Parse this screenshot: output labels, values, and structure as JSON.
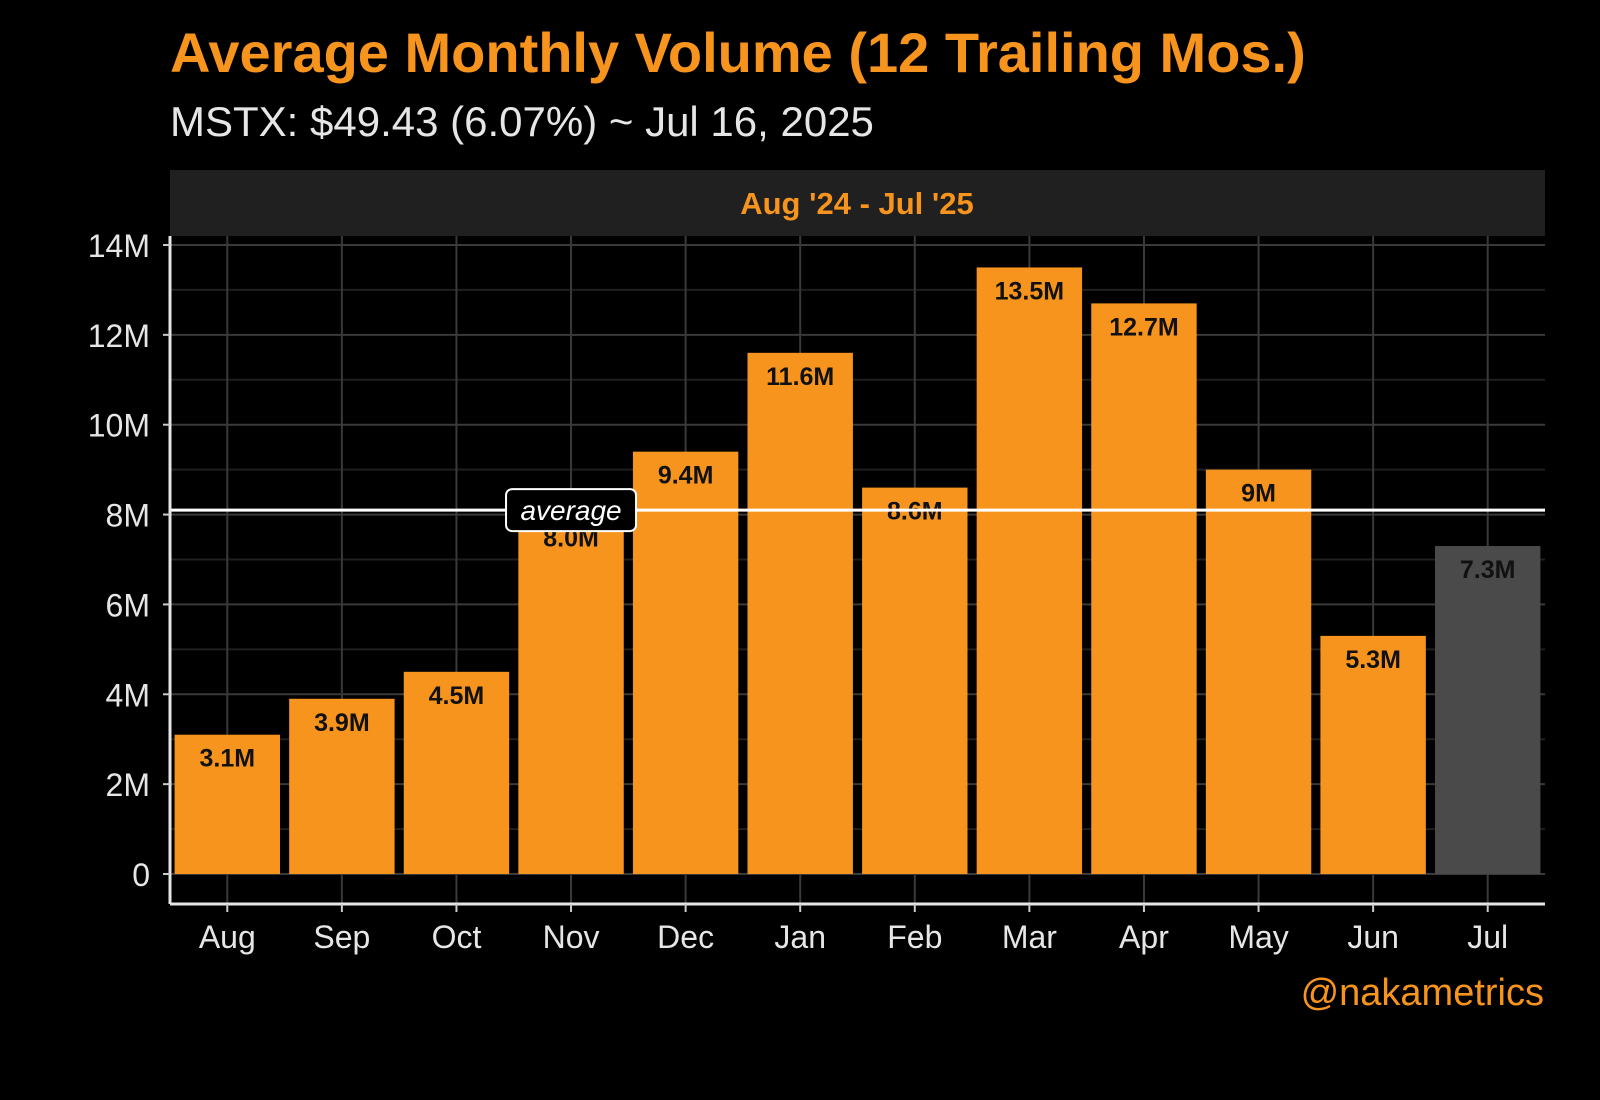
{
  "chart_data": {
    "type": "bar",
    "title": "Average Monthly Volume (12 Trailing Mos.)",
    "subtitle": "MSTX: $49.43 (6.07%) ~ Jul 16, 2025",
    "panel_label": "Aug '24 - Jul '25",
    "credit": "@nakametrics",
    "categories": [
      "Aug",
      "Sep",
      "Oct",
      "Nov",
      "Dec",
      "Jan",
      "Feb",
      "Mar",
      "Apr",
      "May",
      "Jun",
      "Jul"
    ],
    "values": [
      3.1,
      3.9,
      4.5,
      8.0,
      9.4,
      11.6,
      8.6,
      13.5,
      12.7,
      9.0,
      5.3,
      7.3
    ],
    "value_labels": [
      "3.1M",
      "3.9M",
      "4.5M",
      "8.0M",
      "9.4M",
      "11.6M",
      "8.6M",
      "13.5M",
      "12.7M",
      "9M",
      "5.3M",
      "7.3M"
    ],
    "value_unit": "M",
    "yticks": [
      0,
      2,
      4,
      6,
      8,
      10,
      12,
      14
    ],
    "ytick_labels": [
      "0",
      "2M",
      "4M",
      "6M",
      "8M",
      "10M",
      "12M",
      "14M"
    ],
    "ylim": [
      0,
      14.2
    ],
    "average": {
      "value": 8.1,
      "label": "average"
    },
    "grid": true,
    "colors": {
      "bar": "#f7941d",
      "current_bar": "#4a4a4a",
      "background": "#000000",
      "panel_header": "#202020",
      "grid": "#3a3a3a",
      "average_line": "#ffffff",
      "title": "#f7941d"
    }
  }
}
